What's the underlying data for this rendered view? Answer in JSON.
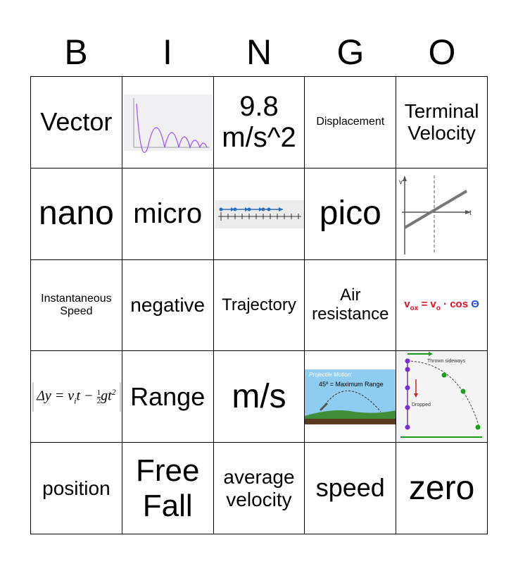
{
  "header": {
    "letters": [
      "B",
      "I",
      "N",
      "G",
      "O"
    ]
  },
  "card": {
    "rows": [
      [
        "Vector",
        null,
        "9.8 m/s^2",
        "Displacement",
        "Terminal Velocity"
      ],
      [
        "nano",
        "micro",
        null,
        "pico",
        {
          "labels": [
            "v",
            "t"
          ]
        }
      ],
      [
        "Instantaneous Speed",
        "negative",
        "Trajectory",
        "Air resistance",
        {
          "formula": [
            "v",
            "ox",
            " = v",
            "o",
            " · cos ",
            "Θ"
          ]
        }
      ],
      [
        {
          "formula": [
            "Δy = v",
            "i",
            "t − ",
            "1",
            "2",
            "gt",
            "2"
          ]
        },
        "Range",
        "m/s",
        {
          "labels": [
            "Projectile Motion:",
            "45º = Maximum Range"
          ]
        },
        {
          "labels": [
            "Thrown sideways",
            "Dropped"
          ]
        }
      ],
      [
        "position",
        "Free Fall",
        "average velocity",
        "speed",
        "zero"
      ]
    ]
  }
}
